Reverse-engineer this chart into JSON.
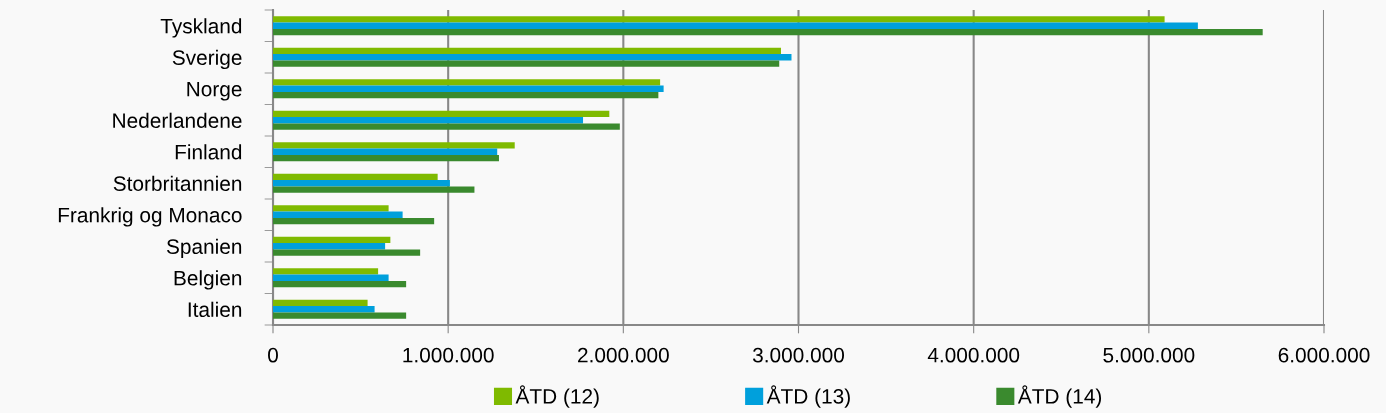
{
  "chart_data": {
    "type": "bar",
    "orientation": "horizontal",
    "categories": [
      "Tyskland",
      "Sverige",
      "Norge",
      "Nederlandene",
      "Finland",
      "Storbritannien",
      "Frankrig og Monaco",
      "Spanien",
      "Belgien",
      "Italien"
    ],
    "series": [
      {
        "name": "ÅTD (12)",
        "color": "#7fba00",
        "values": [
          5090000,
          2900000,
          2210000,
          1920000,
          1380000,
          940000,
          660000,
          670000,
          600000,
          540000
        ]
      },
      {
        "name": "ÅTD (13)",
        "color": "#00a0dc",
        "values": [
          5280000,
          2960000,
          2230000,
          1770000,
          1280000,
          1010000,
          740000,
          640000,
          660000,
          580000
        ]
      },
      {
        "name": "ÅTD (14)",
        "color": "#3a8a2e",
        "values": [
          5650000,
          2890000,
          2200000,
          1980000,
          1290000,
          1150000,
          920000,
          840000,
          760000,
          760000
        ]
      }
    ],
    "xlim": [
      0,
      6000000
    ],
    "xticks": [
      0,
      {
        "value": 1000000,
        "label": "1.000.000"
      },
      {
        "value": 2000000,
        "label": "2.000.000"
      },
      {
        "value": 3000000,
        "label": "3.000.000"
      },
      {
        "value": 4000000,
        "label": "4.000.000"
      },
      {
        "value": 5000000,
        "label": "5.000.000"
      },
      {
        "value": 6000000,
        "label": "6.000.000"
      }
    ],
    "grid": "x",
    "legend": "bottom"
  }
}
